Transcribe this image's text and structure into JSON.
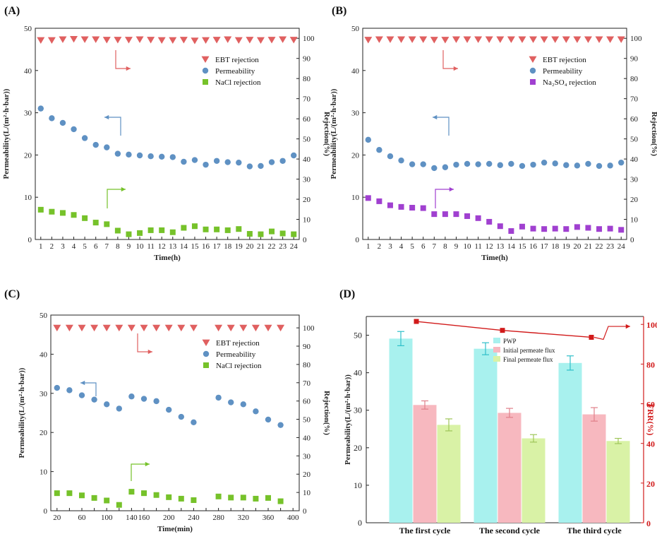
{
  "chart_data": [
    {
      "panel_label": "(A)",
      "type": "scatter",
      "xlabel": "Time(h)",
      "ylabel": "Permeability(L/(m²·h·bar))",
      "ylabel_right": "Rejection(%)",
      "x": [
        1,
        2,
        3,
        4,
        5,
        6,
        7,
        8,
        9,
        10,
        11,
        12,
        13,
        14,
        15,
        16,
        17,
        18,
        19,
        20,
        21,
        22,
        23,
        24
      ],
      "x_ticks": [
        "1",
        "2",
        "3",
        "4",
        "5",
        "6",
        "7",
        "8",
        "9",
        "10",
        "11",
        "12",
        "13",
        "14",
        "15",
        "16",
        "17",
        "18",
        "19",
        "20",
        "21",
        "22",
        "23",
        "24"
      ],
      "ylim": [
        0,
        50
      ],
      "y_ticks": [
        "0",
        "10",
        "20",
        "30",
        "40",
        "50"
      ],
      "ylim_right": [
        0,
        105
      ],
      "y2_ticks": [
        "0",
        "10",
        "20",
        "30",
        "40",
        "50",
        "60",
        "70",
        "80",
        "90",
        "100"
      ],
      "series": [
        {
          "name": "EBT rejection",
          "axis": "right",
          "marker": "triangle-down",
          "color": "#e06060",
          "values": [
            99,
            99,
            99.4,
            99.6,
            99.4,
            99.4,
            99.2,
            99.2,
            99.2,
            99.4,
            99.2,
            99,
            99,
            99.2,
            98.8,
            99,
            99.2,
            99.4,
            99,
            99.2,
            99,
            99.2,
            99.4,
            99.2
          ]
        },
        {
          "name": "Permeability",
          "axis": "left",
          "marker": "circle",
          "color": "#5f91c3",
          "values": [
            31,
            28.7,
            27.6,
            26.1,
            24,
            22.4,
            21.8,
            20.3,
            20.1,
            19.9,
            19.7,
            19.6,
            19.5,
            18.4,
            18.8,
            17.7,
            18.6,
            18.3,
            18.2,
            17.3,
            17.4,
            18.3,
            18.6,
            19.9
          ]
        },
        {
          "name": "NaCl rejection",
          "axis": "right",
          "marker": "square",
          "color": "#76c22a",
          "values": [
            14.8,
            13.8,
            13.2,
            12.2,
            10.6,
            8.4,
            7.6,
            4.4,
            2.6,
            3.2,
            4.6,
            4.6,
            3.6,
            5.8,
            6.6,
            5,
            5,
            4.6,
            5.2,
            2.8,
            2.6,
            4,
            3,
            2.6
          ]
        }
      ],
      "legend": [
        "EBT rejection",
        "Permeability",
        "NaCl rejection"
      ],
      "legend_sub": ""
    },
    {
      "panel_label": "(B)",
      "type": "scatter",
      "xlabel": "Time(h)",
      "ylabel": "Permeability(L/(m²·h·bar))",
      "ylabel_right": "Rejection(%)",
      "x": [
        1,
        2,
        3,
        4,
        5,
        6,
        7,
        8,
        9,
        10,
        11,
        12,
        13,
        14,
        15,
        16,
        17,
        18,
        19,
        20,
        21,
        22,
        23,
        24
      ],
      "x_ticks": [
        "1",
        "2",
        "3",
        "4",
        "5",
        "6",
        "7",
        "8",
        "9",
        "10",
        "11",
        "12",
        "13",
        "14",
        "15",
        "16",
        "17",
        "18",
        "19",
        "20",
        "21",
        "22",
        "23",
        "24"
      ],
      "ylim": [
        0,
        50
      ],
      "y_ticks": [
        "0",
        "10",
        "20",
        "30",
        "40",
        "50"
      ],
      "ylim_right": [
        0,
        105
      ],
      "y2_ticks": [
        "0",
        "10",
        "20",
        "30",
        "40",
        "50",
        "60",
        "70",
        "80",
        "90",
        "100"
      ],
      "series": [
        {
          "name": "EBT rejection",
          "axis": "right",
          "marker": "triangle-down",
          "color": "#e06060",
          "values": [
            99.2,
            99.4,
            99.4,
            99.4,
            99.4,
            99.4,
            99.2,
            99.2,
            99.4,
            99.4,
            99.4,
            99.4,
            99.4,
            99.4,
            99.4,
            99.4,
            99.4,
            99.4,
            99.4,
            99.4,
            99.4,
            99.4,
            99.4,
            99.4
          ]
        },
        {
          "name": "Permeability",
          "axis": "left",
          "marker": "circle",
          "color": "#5f91c3",
          "values": [
            23.6,
            21.2,
            19.7,
            18.7,
            17.8,
            17.8,
            16.9,
            17.1,
            17.7,
            17.9,
            17.8,
            17.9,
            17.6,
            17.9,
            17.4,
            17.7,
            18.2,
            18,
            17.6,
            17.5,
            17.9,
            17.4,
            17.5,
            18.2
          ]
        },
        {
          "name": "Na₂SO₄ rejection",
          "axis": "right",
          "marker": "square",
          "color": "#a040d0",
          "values": [
            20.6,
            19,
            17,
            16.2,
            15.8,
            15.6,
            12.6,
            12.6,
            12.6,
            11.6,
            10.6,
            8.8,
            6.6,
            4.2,
            6.4,
            5.4,
            5.2,
            5.4,
            5.2,
            6.2,
            5.8,
            5.2,
            5.4,
            4.8
          ]
        }
      ],
      "legend": [
        "EBT rejection",
        "Permeability",
        "Na₂SO₄ rejection"
      ],
      "legend_sub": ""
    },
    {
      "panel_label": "(C)",
      "type": "scatter",
      "xlabel": "Time(min)",
      "ylabel": "Permeability(L/(m²·h·bar))",
      "ylabel_right": "Rejection(%)",
      "x_ticks": [
        "20",
        "40",
        "60",
        "80",
        "100",
        "120",
        "140",
        "160",
        "180",
        "200",
        "220",
        "240",
        "260",
        "280",
        "300",
        "320",
        "340",
        "360",
        "380",
        "400"
      ],
      "x_tick_labels_shown": [
        "20",
        "",
        "60",
        "",
        "100",
        "",
        "140",
        "160",
        "",
        "200",
        "",
        "240",
        "",
        "280",
        "",
        "320",
        "",
        "360",
        "",
        "400"
      ],
      "xlim": [
        10,
        410
      ],
      "ylim": [
        0,
        50
      ],
      "y_ticks": [
        "0",
        "10",
        "20",
        "30",
        "40",
        "50"
      ],
      "ylim_right": [
        0,
        107
      ],
      "y2_ticks": [
        "0",
        "10",
        "20",
        "30",
        "40",
        "50",
        "60",
        "70",
        "80",
        "90",
        "100"
      ],
      "series": [
        {
          "name": "EBT rejection",
          "axis": "right",
          "marker": "triangle-down",
          "color": "#e06060",
          "x": [
            20,
            40,
            60,
            80,
            100,
            120,
            140,
            160,
            180,
            200,
            220,
            240,
            280,
            300,
            320,
            340,
            360,
            380
          ],
          "values": [
            100,
            100,
            100,
            100,
            100,
            100,
            100,
            100,
            100,
            100,
            100,
            100,
            100,
            100,
            100,
            100,
            100,
            100
          ]
        },
        {
          "name": "Permeability",
          "axis": "left",
          "marker": "circle",
          "color": "#5f91c3",
          "x": [
            20,
            40,
            60,
            80,
            100,
            120,
            140,
            160,
            180,
            200,
            220,
            240,
            280,
            300,
            320,
            340,
            360,
            380
          ],
          "values": [
            31.4,
            30.8,
            29.5,
            28.4,
            27.2,
            26.1,
            29.2,
            28.6,
            28,
            25.8,
            24,
            22.6,
            28.9,
            27.7,
            27.2,
            25.4,
            23.3,
            21.9
          ]
        },
        {
          "name": "NaCl rejection",
          "axis": "right",
          "marker": "square",
          "color": "#76c22a",
          "x": [
            20,
            40,
            60,
            80,
            100,
            120,
            140,
            160,
            180,
            200,
            220,
            240,
            280,
            300,
            320,
            340,
            360,
            380
          ],
          "values": [
            9.6,
            9.6,
            8.4,
            7,
            5.6,
            3.2,
            10.4,
            9.6,
            8.6,
            7.4,
            6.6,
            5.8,
            7.8,
            7.2,
            7.2,
            6.6,
            7,
            5.2
          ]
        }
      ],
      "legend": [
        "EBT rejection",
        "Permeability",
        "NaCl rejection"
      ]
    },
    {
      "panel_label": "(D)",
      "type": "bar",
      "ylabel": "Permeability(L/(m²·h·bar))",
      "ylabel_right": "FRR(%)",
      "categories": [
        "The first cycle",
        "The second cycle",
        "The third cycle"
      ],
      "ylim": [
        0,
        55
      ],
      "y_ticks": [
        "0",
        "10",
        "20",
        "30",
        "40",
        "50"
      ],
      "ylim_right": [
        0,
        104
      ],
      "y2_ticks": [
        "0",
        "20",
        "40",
        "60",
        "80",
        "100"
      ],
      "series": [
        {
          "name": "PWP",
          "color": "#a8f1ee",
          "values": [
            49.1,
            46.4,
            42.6
          ],
          "errors": [
            1.9,
            1.6,
            1.9
          ]
        },
        {
          "name": "Initial permeate flux",
          "color": "#f7b8bf",
          "values": [
            31.4,
            29.3,
            28.9
          ],
          "errors": [
            1.1,
            1.2,
            1.8
          ]
        },
        {
          "name": "Final permeate flux",
          "color": "#d9f2a6",
          "values": [
            26.1,
            22.5,
            21.8
          ],
          "errors": [
            1.6,
            1.0,
            0.7
          ]
        },
        {
          "name": "FRR",
          "axis": "right",
          "color": "#d11a1a",
          "values": [
            101.5,
            97,
            93.5
          ]
        }
      ],
      "legend": [
        "PWP",
        "Initial permeate flux",
        "Final permeate flux"
      ]
    }
  ]
}
